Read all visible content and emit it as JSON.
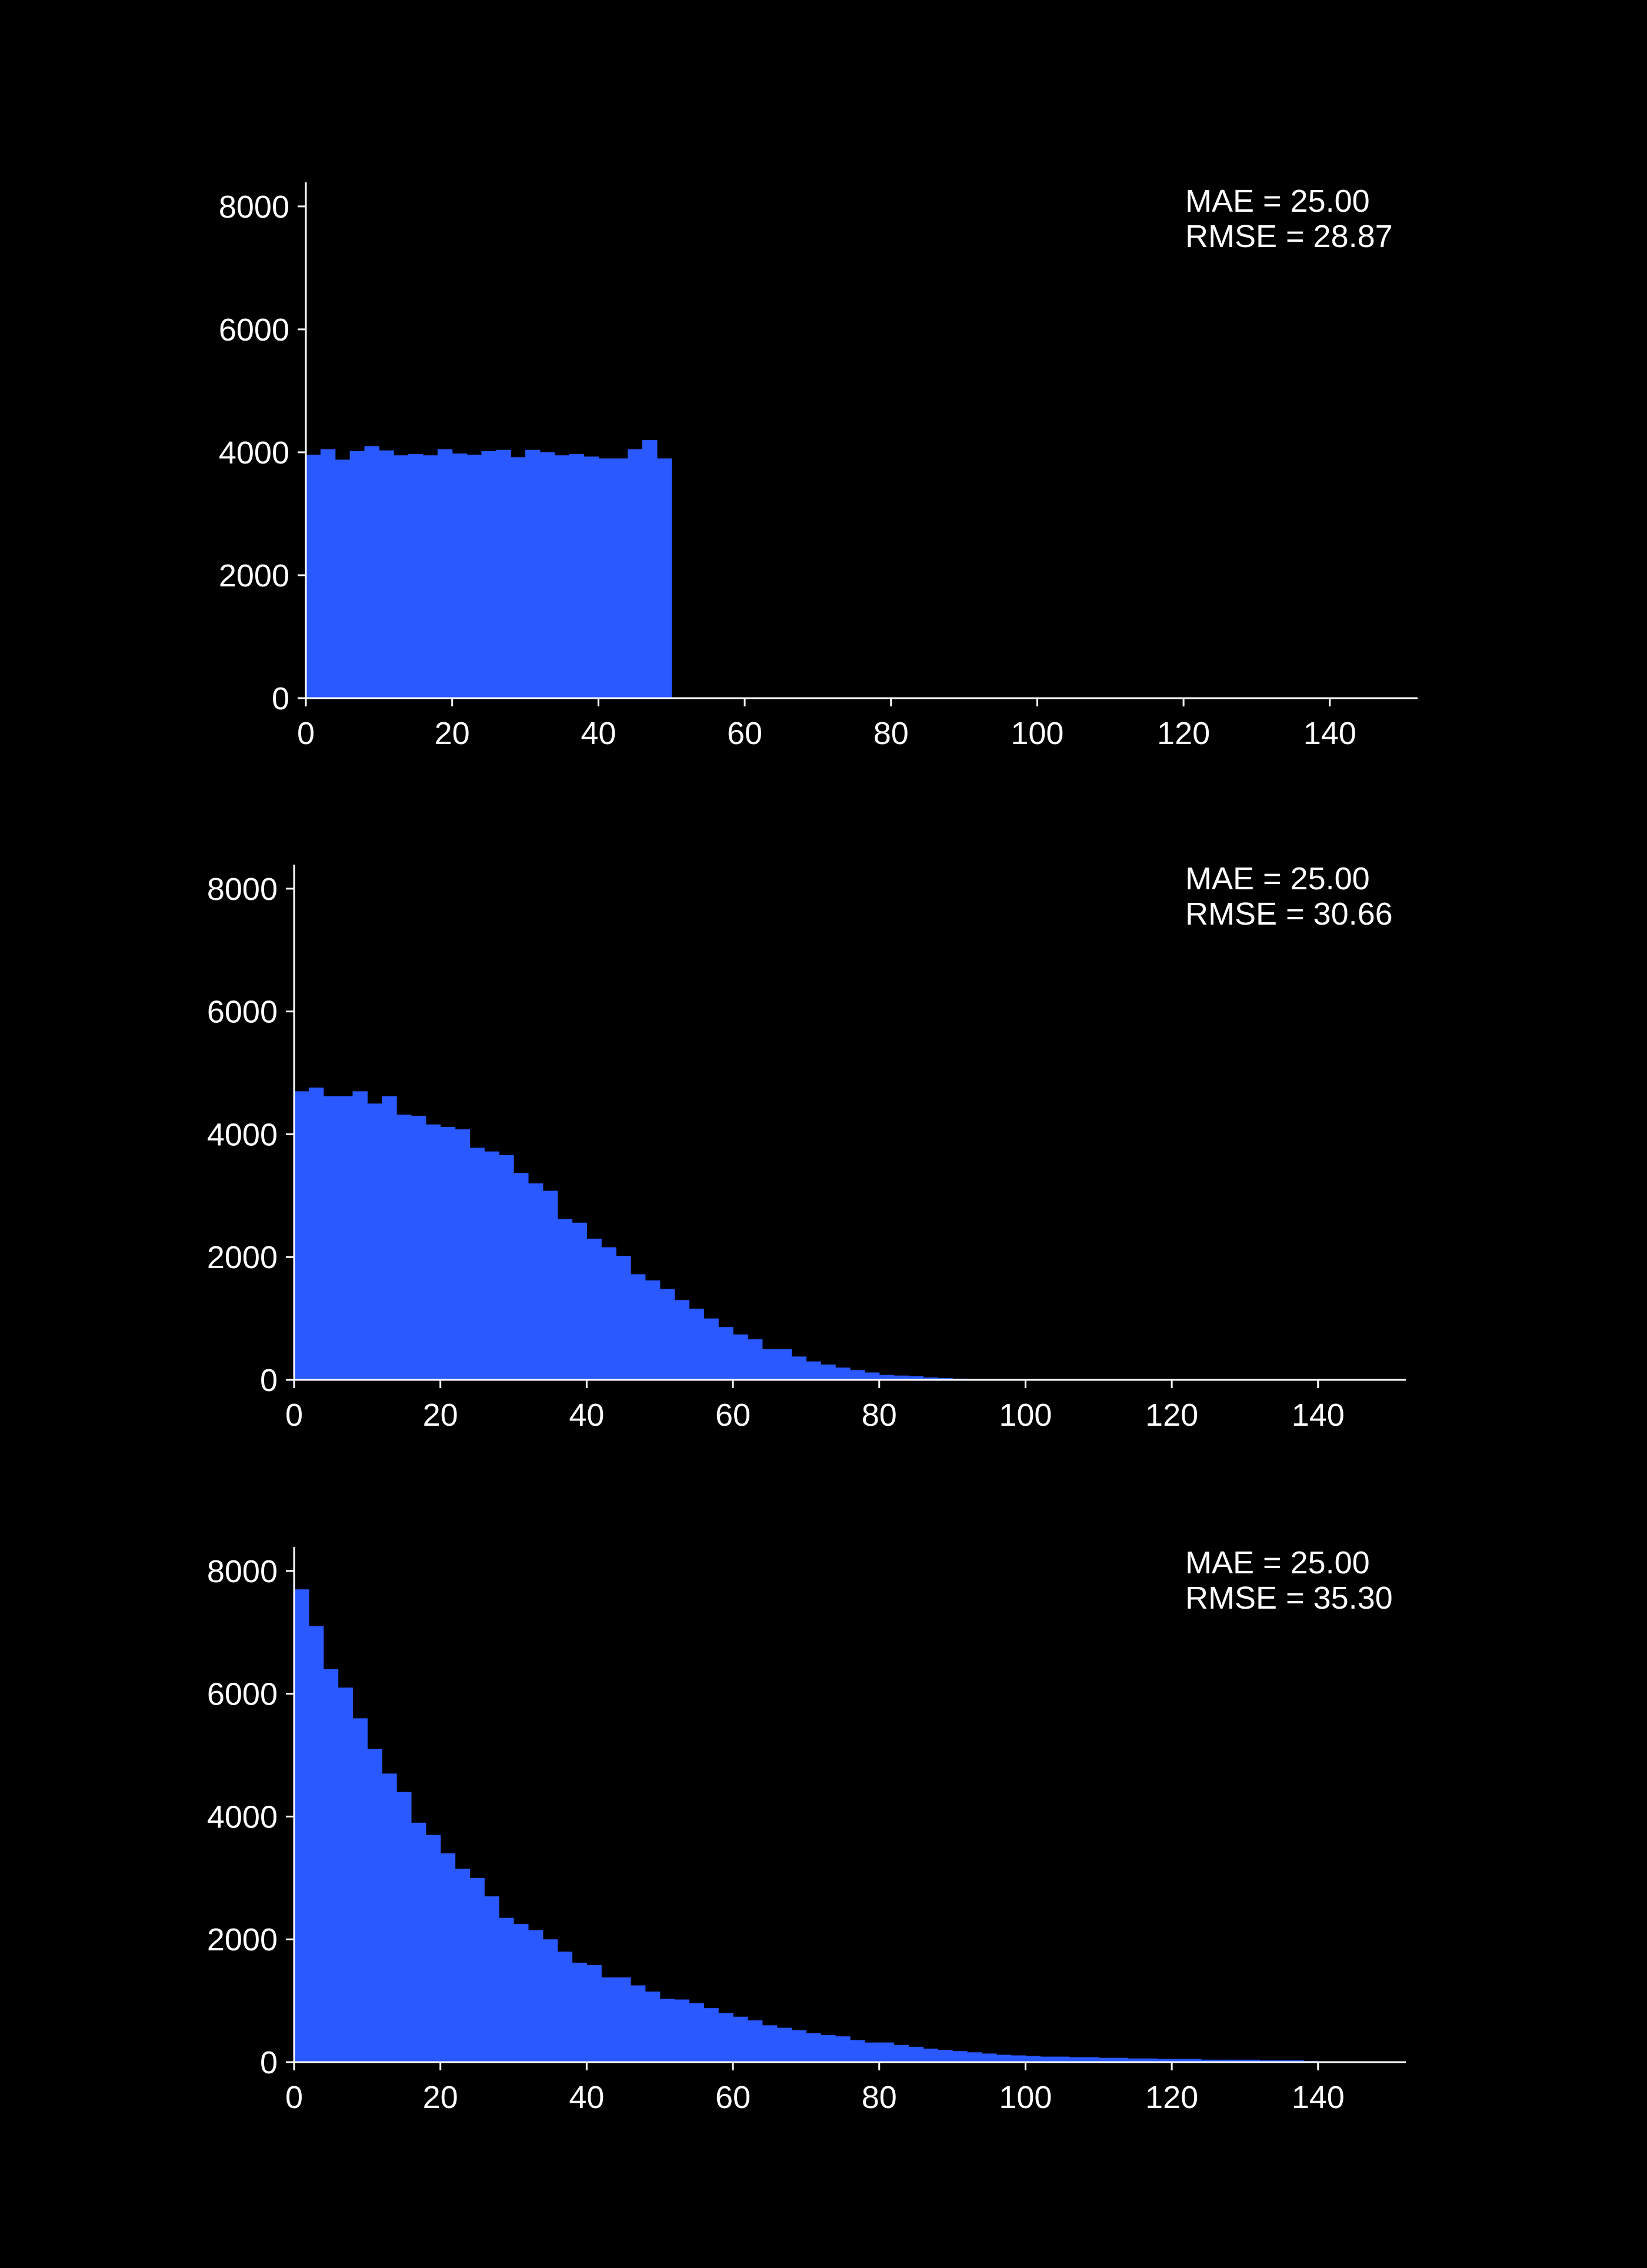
{
  "colors": {
    "background": "#000000",
    "bar": "#2a59ff",
    "axis": "#ffffff",
    "text": "#ffffff"
  },
  "chart_data": [
    {
      "type": "bar",
      "subtype": "histogram",
      "title": "",
      "xlabel": "",
      "ylabel": "",
      "xlim": [
        0,
        152
      ],
      "ylim": [
        0,
        8200
      ],
      "xticks": [
        0,
        20,
        40,
        60,
        80,
        100,
        120,
        140
      ],
      "yticks": [
        0,
        2000,
        4000,
        6000,
        8000
      ],
      "grid": false,
      "bin_width": 2,
      "bin_start": 0,
      "values": [
        3960,
        4050,
        3880,
        4020,
        4100,
        4030,
        3950,
        3970,
        3950,
        4050,
        3980,
        3960,
        4020,
        4040,
        3920,
        4040,
        4000,
        3950,
        3970,
        3930,
        3900,
        3900,
        4050,
        4200,
        3900
      ],
      "annotations": [
        "MAE = 25.00",
        "RMSE = 28.87"
      ]
    },
    {
      "type": "bar",
      "subtype": "histogram",
      "title": "",
      "xlabel": "",
      "ylabel": "",
      "xlim": [
        0,
        152
      ],
      "ylim": [
        0,
        8200
      ],
      "xticks": [
        0,
        20,
        40,
        60,
        80,
        100,
        120,
        140
      ],
      "yticks": [
        0,
        2000,
        4000,
        6000,
        8000
      ],
      "grid": false,
      "bin_width": 2,
      "bin_start": 0,
      "values": [
        4700,
        4760,
        4620,
        4620,
        4700,
        4500,
        4620,
        4320,
        4300,
        4160,
        4120,
        4080,
        3780,
        3720,
        3660,
        3370,
        3200,
        3080,
        2620,
        2560,
        2300,
        2160,
        2020,
        1720,
        1620,
        1480,
        1300,
        1160,
        1000,
        860,
        740,
        660,
        500,
        500,
        380,
        300,
        250,
        200,
        160,
        120,
        80,
        70,
        60,
        40,
        30,
        20,
        10,
        5
      ],
      "annotations": [
        "MAE = 25.00",
        "RMSE = 30.66"
      ]
    },
    {
      "type": "bar",
      "subtype": "histogram",
      "title": "",
      "xlabel": "",
      "ylabel": "",
      "xlim": [
        0,
        152
      ],
      "ylim": [
        0,
        8200
      ],
      "xticks": [
        0,
        20,
        40,
        60,
        80,
        100,
        120,
        140
      ],
      "yticks": [
        0,
        2000,
        4000,
        6000,
        8000
      ],
      "grid": false,
      "bin_width": 2,
      "bin_start": 0,
      "values": [
        7700,
        7100,
        6400,
        6100,
        5600,
        5100,
        4700,
        4400,
        3900,
        3700,
        3400,
        3150,
        3000,
        2700,
        2350,
        2250,
        2150,
        2000,
        1800,
        1620,
        1580,
        1380,
        1380,
        1250,
        1150,
        1030,
        1020,
        960,
        880,
        800,
        740,
        680,
        600,
        560,
        520,
        470,
        440,
        420,
        360,
        320,
        320,
        280,
        250,
        220,
        200,
        180,
        160,
        140,
        120,
        110,
        100,
        90,
        90,
        80,
        80,
        70,
        70,
        60,
        60,
        50,
        50,
        50,
        40,
        40,
        40,
        40,
        30,
        30,
        30,
        20
      ],
      "annotations": [
        "MAE = 25.00",
        "RMSE = 35.30"
      ]
    }
  ]
}
